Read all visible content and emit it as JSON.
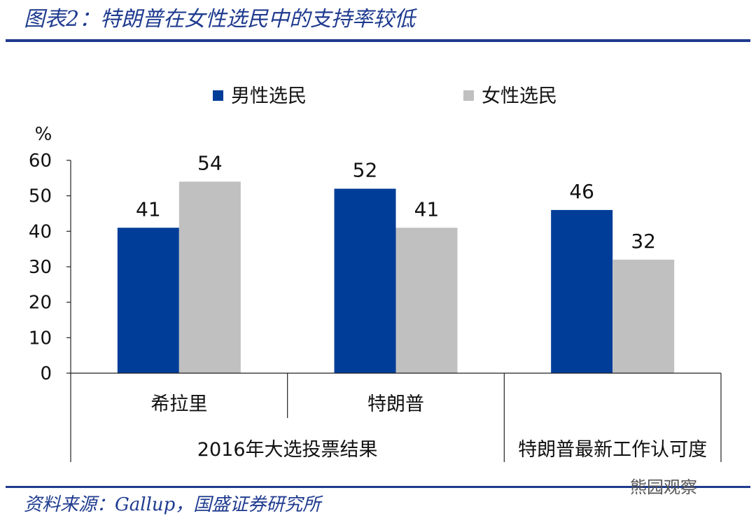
{
  "title": "图表2：特朗普在女性选民中的支持率较低",
  "source": "资料来源：Gallup，国盛证券研究所",
  "watermark": "熊园观察",
  "chart_data": {
    "type": "bar",
    "unit_label": "%",
    "ylim": [
      0,
      60
    ],
    "yticks": [
      0,
      10,
      20,
      30,
      40,
      50,
      60
    ],
    "categories": [
      "希拉里",
      "特朗普",
      "特朗普最新工作认可度"
    ],
    "groups": [
      {
        "label": "2016年大选投票结果",
        "categories": [
          "希拉里",
          "特朗普"
        ]
      },
      {
        "label": "",
        "categories": [
          "特朗普最新工作认可度"
        ]
      }
    ],
    "series": [
      {
        "name": "男性选民",
        "values": [
          41,
          52,
          46
        ],
        "color": "#003d99"
      },
      {
        "name": "女性选民",
        "values": [
          54,
          41,
          32
        ],
        "color": "#c0c0c0"
      }
    ],
    "legend_position": "top",
    "grid": false,
    "data_labels": true
  }
}
